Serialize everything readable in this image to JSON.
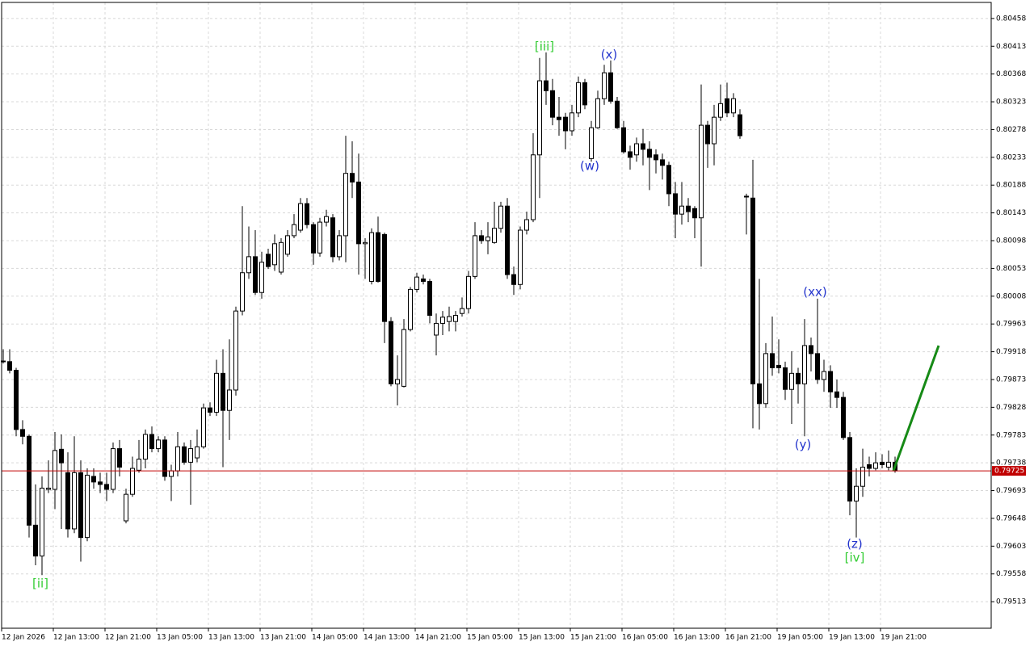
{
  "chart_data": {
    "type": "candlestick",
    "categories": [
      "12 Jan 2026",
      null,
      null,
      null,
      null,
      null,
      null,
      null,
      "12 Jan 13:00",
      null,
      null,
      null,
      null,
      null,
      null,
      null,
      "12 Jan 21:00",
      null,
      null,
      null,
      null,
      null,
      null,
      null,
      "13 Jan 05:00",
      null,
      null,
      null,
      null,
      null,
      null,
      null,
      "13 Jan 13:00",
      null,
      null,
      null,
      null,
      null,
      null,
      null,
      "13 Jan 21:00",
      null,
      null,
      null,
      null,
      null,
      null,
      null,
      "14 Jan 05:00",
      null,
      null,
      null,
      null,
      null,
      null,
      null,
      "14 Jan 13:00",
      null,
      null,
      null,
      null,
      null,
      null,
      null,
      "14 Jan 21:00",
      null,
      null,
      null,
      null,
      null,
      null,
      null,
      "15 Jan 05:00",
      null,
      null,
      null,
      null,
      null,
      null,
      null,
      "15 Jan 13:00",
      null,
      null,
      null,
      null,
      null,
      null,
      null,
      "15 Jan 21:00",
      null,
      null,
      null,
      null,
      null,
      null,
      null,
      "16 Jan 05:00",
      null,
      null,
      null,
      null,
      null,
      null,
      null,
      "16 Jan 13:00",
      null,
      null,
      null,
      null,
      null,
      null,
      null,
      "16 Jan 21:00",
      null,
      null,
      null,
      null,
      null,
      null,
      null,
      "19 Jan 05:00",
      null,
      null,
      null,
      null,
      null,
      null,
      null,
      "19 Jan 13:00",
      null,
      null,
      null,
      null,
      null,
      null,
      null,
      "19 Jan 21:00",
      null,
      null
    ],
    "open": [
      0.79903,
      0.79902,
      0.79888,
      0.79792,
      0.79781,
      0.79637,
      0.79587,
      0.79695,
      0.79695,
      0.7976,
      0.79722,
      0.79631,
      0.79722,
      0.79617,
      0.79716,
      0.79707,
      0.79703,
      0.79695,
      0.79761,
      0.79644,
      0.79687,
      0.79726,
      0.79744,
      0.79784,
      0.79761,
      0.79775,
      0.79716,
      0.79725,
      0.79764,
      0.79739,
      0.79746,
      0.79764,
      0.79827,
      0.7982,
      0.79883,
      0.79823,
      0.79856,
      0.79984,
      0.80046,
      0.80072,
      0.80014,
      0.80076,
      0.80059,
      0.80047,
      0.80076,
      0.80106,
      0.80115,
      0.80158,
      0.80124,
      0.80078,
      0.80128,
      0.80135,
      0.80072,
      0.80106,
      0.80207,
      0.80193,
      0.80093,
      0.80032,
      0.80111,
      0.80108,
      0.79967,
      0.79866,
      0.79862,
      0.79954,
      0.80019,
      0.80036,
      0.80032,
      0.79945,
      0.79964,
      0.79967,
      0.79967,
      0.7998,
      0.79988,
      0.8004,
      0.80106,
      0.80098,
      0.80095,
      0.80118,
      0.80154,
      0.80043,
      0.80027,
      0.80115,
      0.80132,
      0.80237,
      0.80357,
      0.80341,
      0.80298,
      0.80298,
      0.80276,
      0.80305,
      0.80354,
      0.80231,
      0.80281,
      0.80328,
      0.8037,
      0.80324,
      0.80281,
      0.80242,
      0.80237,
      0.80255,
      0.80246,
      0.80237,
      0.80229,
      0.8022,
      0.80174,
      0.80141,
      0.80154,
      0.8015,
      0.80135,
      0.80285,
      0.80255,
      0.80298,
      0.80328,
      0.80305,
      0.80302,
      0.8017,
      0.80167,
      0.79866,
      0.79834,
      0.79915,
      0.79896,
      0.79892,
      0.79857,
      0.79883,
      0.79866,
      0.79928,
      0.79915,
      0.79873,
      0.79886,
      0.79853,
      0.79844,
      0.79779,
      0.79676,
      0.797,
      0.79735,
      0.79729,
      0.79739,
      0.79731,
      0.79739
    ],
    "high": [
      0.79922,
      0.79922,
      0.79892,
      0.79807,
      0.79784,
      0.79703,
      0.79716,
      0.79742,
      0.79788,
      0.79784,
      0.79755,
      0.79781,
      0.79742,
      0.79729,
      0.79729,
      0.79722,
      0.79722,
      0.79771,
      0.79775,
      0.79696,
      0.79748,
      0.79775,
      0.79792,
      0.79797,
      0.79781,
      0.79781,
      0.79735,
      0.79788,
      0.79771,
      0.79775,
      0.79792,
      0.79834,
      0.79836,
      0.79905,
      0.79922,
      0.79938,
      0.79991,
      0.80154,
      0.80121,
      0.80115,
      0.8008,
      0.80085,
      0.80108,
      0.80102,
      0.80115,
      0.80141,
      0.80167,
      0.80167,
      0.80128,
      0.80135,
      0.80148,
      0.80141,
      0.80115,
      0.80268,
      0.80259,
      0.80239,
      0.80102,
      0.80118,
      0.80137,
      0.80111,
      0.79974,
      0.79912,
      0.79971,
      0.80023,
      0.80046,
      0.80043,
      0.80036,
      0.7998,
      0.79984,
      0.79991,
      0.79984,
      0.80006,
      0.80049,
      0.80128,
      0.80115,
      0.80128,
      0.80161,
      0.80161,
      0.80167,
      0.80056,
      0.80121,
      0.80145,
      0.80272,
      0.80394,
      0.80403,
      0.8036,
      0.80331,
      0.80305,
      0.80318,
      0.80364,
      0.8036,
      0.80292,
      0.80341,
      0.80383,
      0.8039,
      0.80331,
      0.80292,
      0.80252,
      0.80265,
      0.80279,
      0.80259,
      0.80246,
      0.80239,
      0.80226,
      0.80193,
      0.80193,
      0.80167,
      0.80154,
      0.80351,
      0.80292,
      0.80318,
      0.80351,
      0.80354,
      0.80337,
      0.80311,
      0.80174,
      0.80229,
      0.80036,
      0.79932,
      0.79975,
      0.79938,
      0.79902,
      0.79919,
      0.79892,
      0.79971,
      0.79941,
      0.80004,
      0.79905,
      0.79896,
      0.79873,
      0.79853,
      0.79788,
      0.79729,
      0.79761,
      0.79748,
      0.79755,
      0.79752,
      0.79758,
      0.79748
    ],
    "low": [
      0.79899,
      0.79883,
      0.79781,
      0.79768,
      0.79617,
      0.79572,
      0.79556,
      0.79689,
      0.79663,
      0.79631,
      0.79617,
      0.79624,
      0.79578,
      0.79611,
      0.79696,
      0.79689,
      0.79676,
      0.79689,
      0.79716,
      0.7964,
      0.79683,
      0.79722,
      0.79729,
      0.79755,
      0.79755,
      0.79709,
      0.79676,
      0.79716,
      0.79735,
      0.7967,
      0.79739,
      0.79761,
      0.79814,
      0.79814,
      0.79731,
      0.79775,
      0.79847,
      0.79977,
      0.80036,
      0.8001,
      0.80004,
      0.80052,
      0.80049,
      0.80043,
      0.80072,
      0.80102,
      0.80111,
      0.80118,
      0.80059,
      0.80072,
      0.80121,
      0.80063,
      0.80066,
      0.80063,
      0.80167,
      0.80043,
      0.80036,
      0.80027,
      0.8003,
      0.79932,
      0.79862,
      0.79831,
      0.7986,
      0.79951,
      0.80014,
      0.80027,
      0.79964,
      0.79912,
      0.79945,
      0.79951,
      0.79951,
      0.79975,
      0.7998,
      0.80036,
      0.80093,
      0.80076,
      0.80093,
      0.80111,
      0.80036,
      0.8001,
      0.80019,
      0.80108,
      0.80128,
      0.80167,
      0.80318,
      0.80285,
      0.80268,
      0.80246,
      0.80268,
      0.80298,
      0.80311,
      0.80226,
      0.80279,
      0.80318,
      0.8032,
      0.80279,
      0.80239,
      0.80213,
      0.80226,
      0.8022,
      0.8018,
      0.80207,
      0.80197,
      0.80154,
      0.80102,
      0.80124,
      0.80128,
      0.80102,
      0.80056,
      0.80216,
      0.8022,
      0.80292,
      0.80298,
      0.80298,
      0.80263,
      0.80108,
      0.79794,
      0.79792,
      0.79827,
      0.79879,
      0.79883,
      0.7984,
      0.79801,
      0.79834,
      0.79781,
      0.79886,
      0.79866,
      0.79853,
      0.79827,
      0.79827,
      0.79775,
      0.79653,
      0.79617,
      0.79683,
      0.79716,
      0.79726,
      0.79729,
      0.79726,
      0.79722
    ],
    "close": [
      0.79902,
      0.79888,
      0.79792,
      0.79781,
      0.79637,
      0.79587,
      0.79697,
      0.79697,
      0.79758,
      0.79738,
      0.79631,
      0.79722,
      0.79617,
      0.79718,
      0.79707,
      0.79703,
      0.79695,
      0.79761,
      0.79731,
      0.79687,
      0.79729,
      0.79744,
      0.79784,
      0.79761,
      0.79775,
      0.79716,
      0.79725,
      0.79764,
      0.79739,
      0.79761,
      0.79764,
      0.79827,
      0.7982,
      0.79883,
      0.79823,
      0.79856,
      0.79984,
      0.80046,
      0.80072,
      0.80014,
      0.80063,
      0.80056,
      0.80093,
      0.80095,
      0.80106,
      0.80124,
      0.80158,
      0.80124,
      0.80078,
      0.80128,
      0.80137,
      0.80072,
      0.80106,
      0.80207,
      0.80193,
      0.80093,
      0.80095,
      0.80111,
      0.80032,
      0.79967,
      0.79866,
      0.79873,
      0.79954,
      0.80019,
      0.80039,
      0.80032,
      0.79977,
      0.79964,
      0.79974,
      0.79975,
      0.79977,
      0.79988,
      0.8004,
      0.80106,
      0.80098,
      0.80104,
      0.80118,
      0.80154,
      0.80043,
      0.80027,
      0.80115,
      0.80132,
      0.80237,
      0.80357,
      0.80341,
      0.80298,
      0.80294,
      0.80276,
      0.80305,
      0.80354,
      0.80318,
      0.80281,
      0.80328,
      0.8037,
      0.80324,
      0.80281,
      0.80242,
      0.80233,
      0.80255,
      0.80246,
      0.80233,
      0.80229,
      0.8022,
      0.80174,
      0.80141,
      0.80154,
      0.80145,
      0.80135,
      0.80285,
      0.80255,
      0.80298,
      0.8032,
      0.80305,
      0.80328,
      0.80268,
      0.80169,
      0.79866,
      0.79834,
      0.79915,
      0.79892,
      0.79892,
      0.79857,
      0.79883,
      0.79866,
      0.79928,
      0.79915,
      0.79873,
      0.79886,
      0.79853,
      0.79844,
      0.79779,
      0.79676,
      0.797,
      0.79731,
      0.79729,
      0.79738,
      0.79735,
      0.79739,
      0.79725
    ],
    "up_color": "#ffffff",
    "down_color": "#000000",
    "ylim": [
      0.7947,
      0.80484
    ],
    "yticks": [
      0.80458,
      0.80413,
      0.80368,
      0.80323,
      0.80278,
      0.80233,
      0.80188,
      0.80143,
      0.80098,
      0.80053,
      0.80008,
      0.79963,
      0.79918,
      0.79873,
      0.79828,
      0.79783,
      0.79738,
      0.79693,
      0.79648,
      0.79603,
      0.79558,
      0.79513
    ],
    "grid": true,
    "last_price": 0.79725,
    "last_price_color": "#c00000",
    "annotations": [
      {
        "text": "[ii]",
        "color": "#33cc33"
      },
      {
        "text": "[iii]",
        "color": "#33cc33"
      },
      {
        "text": "(x)",
        "color": "#2233cc"
      },
      {
        "text": "(w)",
        "color": "#2233cc"
      },
      {
        "text": "(xx)",
        "color": "#2233cc"
      },
      {
        "text": "(y)",
        "color": "#2233cc"
      },
      {
        "text": "(z)",
        "color": "#2233cc"
      },
      {
        "text": "[iv]",
        "color": "#33cc33"
      }
    ]
  }
}
